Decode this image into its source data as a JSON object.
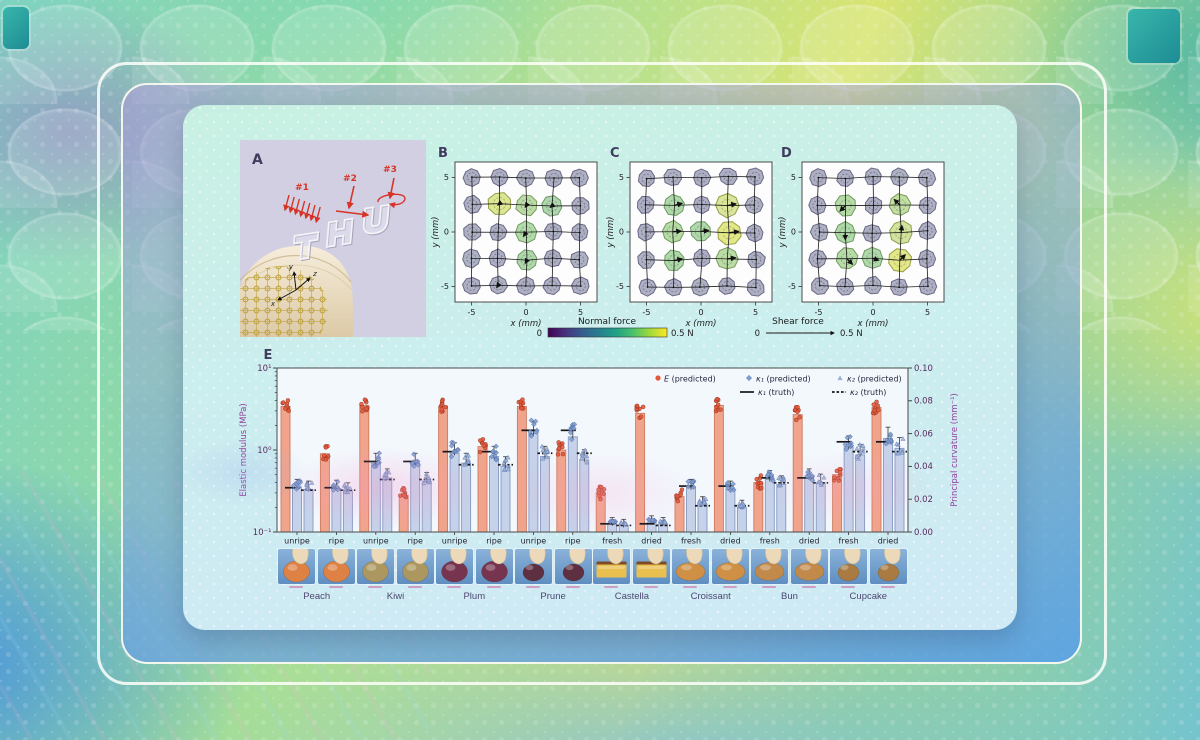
{
  "figure": {
    "panel_a": {
      "label": "A",
      "stimulus_labels": [
        "#1",
        "#2",
        "#3"
      ],
      "axis_labels": {
        "x": "x",
        "y": "y",
        "z": "z"
      }
    },
    "tactile": {
      "x_label": "x (mm)",
      "y_label": "y (mm)",
      "axis_ticks": [
        "-5",
        "0",
        "5"
      ],
      "grid_positions_mm": [
        -5,
        -2.5,
        0,
        2.5,
        5
      ],
      "normal_force_legend": {
        "title": "Normal force",
        "min_label": "0",
        "max_label": "0.5 N"
      },
      "shear_force_legend": {
        "title": "Shear force",
        "min_label": "0",
        "max_label": "0.5 N"
      },
      "panels": [
        {
          "label": "B",
          "normal_force_N": [
            [
              0.07,
              0.07,
              0.08,
              0.07,
              0.07
            ],
            [
              0.07,
              0.43,
              0.33,
              0.28,
              0.07
            ],
            [
              0.08,
              0.07,
              0.31,
              0.07,
              0.07
            ],
            [
              0.09,
              0.07,
              0.29,
              0.07,
              0.08
            ],
            [
              0.07,
              0.08,
              0.07,
              0.07,
              0.07
            ]
          ],
          "shear_force_N": [
            [
              [
                0,
                0
              ],
              [
                0.03,
                -0.04
              ],
              [
                0,
                0
              ],
              [
                0.03,
                -0.03
              ],
              [
                0,
                0
              ]
            ],
            [
              [
                0,
                0
              ],
              [
                -0.05,
                -0.04
              ],
              [
                -0.04,
                -0.06
              ],
              [
                -0.05,
                -0.04
              ],
              [
                0,
                0
              ]
            ],
            [
              [
                0,
                0
              ],
              [
                0,
                0
              ],
              [
                -0.08,
                -0.12
              ],
              [
                0.02,
                -0.02
              ],
              [
                0,
                0
              ]
            ],
            [
              [
                0,
                0
              ],
              [
                0.02,
                0.02
              ],
              [
                -0.05,
                -0.09
              ],
              [
                0,
                0
              ],
              [
                0,
                0
              ]
            ],
            [
              [
                0,
                0
              ],
              [
                -0.04,
                -0.06
              ],
              [
                0,
                0
              ],
              [
                0.02,
                -0.03
              ],
              [
                0,
                0
              ]
            ]
          ]
        },
        {
          "label": "C",
          "normal_force_N": [
            [
              0.07,
              0.08,
              0.07,
              0.07,
              0.07
            ],
            [
              0.07,
              0.3,
              0.07,
              0.42,
              0.08
            ],
            [
              0.07,
              0.32,
              0.3,
              0.45,
              0.07
            ],
            [
              0.08,
              0.3,
              0.07,
              0.33,
              0.07
            ],
            [
              0.07,
              0.07,
              0.08,
              0.07,
              0.07
            ]
          ],
          "shear_force_N": [
            [
              [
                0,
                0
              ],
              [
                0.05,
                0.01
              ],
              [
                0,
                0
              ],
              [
                0.05,
                0.01
              ],
              [
                0,
                0
              ]
            ],
            [
              [
                0,
                0
              ],
              [
                0.22,
                0.06
              ],
              [
                0,
                0
              ],
              [
                0.25,
                0.05
              ],
              [
                0,
                0
              ]
            ],
            [
              [
                0.04,
                0
              ],
              [
                0.24,
                0.02
              ],
              [
                0.22,
                0.03
              ],
              [
                0.28,
                0.04
              ],
              [
                0,
                0
              ]
            ],
            [
              [
                0,
                0
              ],
              [
                0.23,
                0.05
              ],
              [
                0,
                0
              ],
              [
                0.24,
                0.03
              ],
              [
                0,
                0
              ]
            ],
            [
              [
                0,
                0
              ],
              [
                0.05,
                0.01
              ],
              [
                0,
                0
              ],
              [
                0.05,
                0.01
              ],
              [
                0,
                0
              ]
            ]
          ]
        },
        {
          "label": "D",
          "normal_force_N": [
            [
              0.07,
              0.07,
              0.07,
              0.08,
              0.07
            ],
            [
              0.07,
              0.32,
              0.07,
              0.35,
              0.07
            ],
            [
              0.08,
              0.3,
              0.07,
              0.4,
              0.07
            ],
            [
              0.07,
              0.32,
              0.3,
              0.45,
              0.07
            ],
            [
              0.07,
              0.07,
              0.08,
              0.07,
              0.07
            ]
          ],
          "shear_force_N": [
            [
              [
                0,
                0
              ],
              [
                -0.04,
                -0.03
              ],
              [
                0,
                0
              ],
              [
                -0.04,
                0.04
              ],
              [
                0,
                0
              ]
            ],
            [
              [
                0,
                0
              ],
              [
                -0.16,
                -0.16
              ],
              [
                0,
                0
              ],
              [
                -0.16,
                0.16
              ],
              [
                0,
                0
              ]
            ],
            [
              [
                0,
                0
              ],
              [
                0,
                -0.2
              ],
              [
                0,
                0
              ],
              [
                0.02,
                0.2
              ],
              [
                0,
                0
              ]
            ],
            [
              [
                0,
                0
              ],
              [
                0.16,
                -0.16
              ],
              [
                0.18,
                -0.06
              ],
              [
                0.16,
                0.16
              ],
              [
                0,
                0
              ]
            ],
            [
              [
                0,
                0
              ],
              [
                0.04,
                -0.03
              ],
              [
                0,
                0
              ],
              [
                0.04,
                0.03
              ],
              [
                0,
                0
              ]
            ]
          ]
        }
      ]
    },
    "chart_data": {
      "type": "bar",
      "panel_label": "E",
      "y_left": {
        "label": "Elastic modulus (MPa)",
        "scale": "log",
        "min": 0.1,
        "max": 10,
        "tick_labels": [
          "10⁻¹",
          "10⁰",
          "10¹"
        ]
      },
      "y_right": {
        "label": "Principal curvature (mm⁻¹)",
        "min": 0,
        "max": 0.1,
        "tick_labels": [
          "0.00",
          "0.02",
          "0.04",
          "0.06",
          "0.08",
          "0.10"
        ]
      },
      "legend": [
        "E (predicted)",
        "κ₁ (predicted)",
        "κ₂ (predicted)",
        "κ₁ (truth)",
        "κ₂ (truth)"
      ],
      "groups": [
        {
          "food": "Peach",
          "condition": "unripe",
          "E": 3.4,
          "k1": 0.027,
          "k2": 0.026,
          "k1_truth": 0.027,
          "k2_truth": 0.0255
        },
        {
          "food": "Peach",
          "condition": "ripe",
          "E": 0.9,
          "k1": 0.0265,
          "k2": 0.025,
          "k1_truth": 0.027,
          "k2_truth": 0.0255
        },
        {
          "food": "Kiwi",
          "condition": "unripe",
          "E": 3.5,
          "k1": 0.042,
          "k2": 0.033,
          "k1_truth": 0.043,
          "k2_truth": 0.032
        },
        {
          "food": "Kiwi",
          "condition": "ripe",
          "E": 0.28,
          "k1": 0.042,
          "k2": 0.031,
          "k1_truth": 0.043,
          "k2_truth": 0.032
        },
        {
          "food": "Plum",
          "condition": "unripe",
          "E": 3.4,
          "k1": 0.048,
          "k2": 0.042,
          "k1_truth": 0.049,
          "k2_truth": 0.041
        },
        {
          "food": "Plum",
          "condition": "ripe",
          "E": 1.1,
          "k1": 0.046,
          "k2": 0.04,
          "k1_truth": 0.049,
          "k2_truth": 0.041
        },
        {
          "food": "Prune",
          "condition": "unripe",
          "E": 3.4,
          "k1": 0.06,
          "k2": 0.046,
          "k1_truth": 0.062,
          "k2_truth": 0.048
        },
        {
          "food": "Prune",
          "condition": "ripe",
          "E": 1.0,
          "k1": 0.058,
          "k2": 0.044,
          "k1_truth": 0.062,
          "k2_truth": 0.048
        },
        {
          "food": "Castella",
          "condition": "fresh",
          "E": 0.3,
          "k1": 0.005,
          "k2": 0.004,
          "k1_truth": 0.005,
          "k2_truth": 0.004
        },
        {
          "food": "Castella",
          "condition": "dried",
          "E": 2.8,
          "k1": 0.006,
          "k2": 0.005,
          "k1_truth": 0.005,
          "k2_truth": 0.004
        },
        {
          "food": "Croissant",
          "condition": "fresh",
          "E": 0.27,
          "k1": 0.027,
          "k2": 0.017,
          "k1_truth": 0.028,
          "k2_truth": 0.016
        },
        {
          "food": "Croissant",
          "condition": "dried",
          "E": 3.5,
          "k1": 0.026,
          "k2": 0.015,
          "k1_truth": 0.028,
          "k2_truth": 0.016
        },
        {
          "food": "Bun",
          "condition": "fresh",
          "E": 0.4,
          "k1": 0.032,
          "k2": 0.029,
          "k1_truth": 0.033,
          "k2_truth": 0.03
        },
        {
          "food": "Bun",
          "condition": "dried",
          "E": 2.7,
          "k1": 0.033,
          "k2": 0.03,
          "k1_truth": 0.033,
          "k2_truth": 0.03
        },
        {
          "food": "Cupcake",
          "condition": "fresh",
          "E": 0.5,
          "k1": 0.052,
          "k2": 0.047,
          "k1_truth": 0.055,
          "k2_truth": 0.049
        },
        {
          "food": "Cupcake",
          "condition": "dried",
          "E": 3.3,
          "k1": 0.057,
          "k2": 0.051,
          "k1_truth": 0.055,
          "k2_truth": 0.049
        }
      ],
      "foods": [
        {
          "name": "Peach",
          "conditions": [
            "unripe",
            "ripe"
          ],
          "color": "#dd8144",
          "shape": "sphere"
        },
        {
          "name": "Kiwi",
          "conditions": [
            "unripe",
            "ripe"
          ],
          "color": "#ac9760",
          "shape": "sphere"
        },
        {
          "name": "Plum",
          "conditions": [
            "unripe",
            "ripe"
          ],
          "color": "#76344e",
          "shape": "sphere"
        },
        {
          "name": "Prune",
          "conditions": [
            "unripe",
            "ripe"
          ],
          "color": "#5e2f40",
          "shape": "sphere-small"
        },
        {
          "name": "Castella",
          "conditions": [
            "fresh",
            "dried"
          ],
          "color": "#e9c050",
          "shape": "slab"
        },
        {
          "name": "Croissant",
          "conditions": [
            "fresh",
            "dried"
          ],
          "color": "#cf9045",
          "shape": "loaf"
        },
        {
          "name": "Bun",
          "conditions": [
            "fresh",
            "dried"
          ],
          "color": "#c28a4a",
          "shape": "loaf"
        },
        {
          "name": "Cupcake",
          "conditions": [
            "fresh",
            "dried"
          ],
          "color": "#a97b42",
          "shape": "sphere-small"
        }
      ]
    },
    "colors": {
      "salmon_bar": "#f1a48c",
      "salmon_edge": "#cd7b60",
      "salmon_dot": "#e2593c",
      "blue_bar": "#c6d2ea",
      "blue_edge": "#8399c2",
      "k1_dot": "#7f9bce",
      "k2_dot": "#9db1d8",
      "truth": "#16161c",
      "viridis": [
        "#440154",
        "#46327e",
        "#365c8d",
        "#277f8e",
        "#1fa187",
        "#4ac16d",
        "#a0da39",
        "#fde725"
      ],
      "panel_letter": "#3f3c5e",
      "axis_label": "#93419b",
      "tick_text": "#5c2a60",
      "plot_bg": "#f3f8fd"
    }
  }
}
